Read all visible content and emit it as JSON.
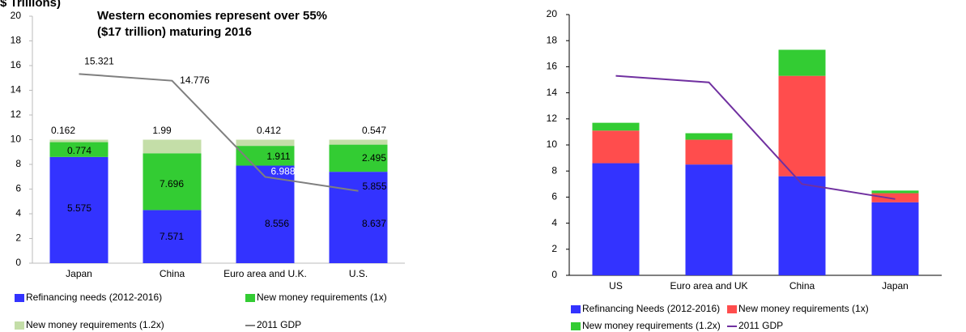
{
  "chart_data": [
    {
      "type": "bar",
      "stacked": true,
      "title": "Western economies represent over 55%",
      "subtitle": "($17 trillion) maturing 2016",
      "ylabel": "$ Trillions)",
      "categories": [
        "Japan",
        "China",
        "Euro area and U.K.",
        "U.S."
      ],
      "series": [
        {
          "name": "Refinancing needs (2012-2016)",
          "color": "#3333ff",
          "values": [
            8.6,
            4.3,
            7.9,
            7.4
          ]
        },
        {
          "name": "New money requirements (1x)",
          "color": "#33cc33",
          "values": [
            1.2,
            4.6,
            1.6,
            2.2
          ]
        },
        {
          "name": "New money requirements (1.2x)",
          "color": "#c4dea8",
          "values": [
            0.2,
            1.1,
            0.5,
            0.4
          ]
        },
        {
          "name": "2011 GDP",
          "type": "line",
          "color": "#7f7f7f",
          "values": [
            15.321,
            14.776,
            6.988,
            5.855
          ]
        }
      ],
      "annotations": [
        "0.162",
        "0.774",
        "5.575",
        "1.99",
        "7.696",
        "7.571",
        "0.412",
        "1.911",
        "8.556",
        "0.547",
        "2.495",
        "8.637"
      ],
      "ylim": [
        0,
        20
      ],
      "yticks": [
        0,
        2,
        4,
        6,
        8,
        10,
        12,
        14,
        16,
        18,
        20
      ],
      "grid": false
    },
    {
      "type": "bar",
      "stacked": true,
      "categories": [
        "US",
        "Euro area and UK",
        "China",
        "Japan"
      ],
      "series": [
        {
          "name": "Refinancing Needs (2012-2016)",
          "color": "#3333ff",
          "values": [
            8.6,
            8.5,
            7.6,
            5.6
          ]
        },
        {
          "name": "New money requirements (1x)",
          "color": "#ff4d4d",
          "values": [
            2.5,
            1.9,
            7.7,
            0.7
          ]
        },
        {
          "name": "New money requirements (1.2x)",
          "color": "#33cc33",
          "values": [
            0.6,
            0.5,
            2.0,
            0.2
          ]
        },
        {
          "name": "2011 GDP",
          "type": "line",
          "color": "#7030a0",
          "values": [
            15.3,
            14.8,
            7.0,
            5.85
          ]
        }
      ],
      "ylim": [
        0,
        20
      ],
      "yticks": [
        0,
        2,
        4,
        6,
        8,
        10,
        12,
        14,
        16,
        18,
        20
      ],
      "grid": false
    }
  ]
}
